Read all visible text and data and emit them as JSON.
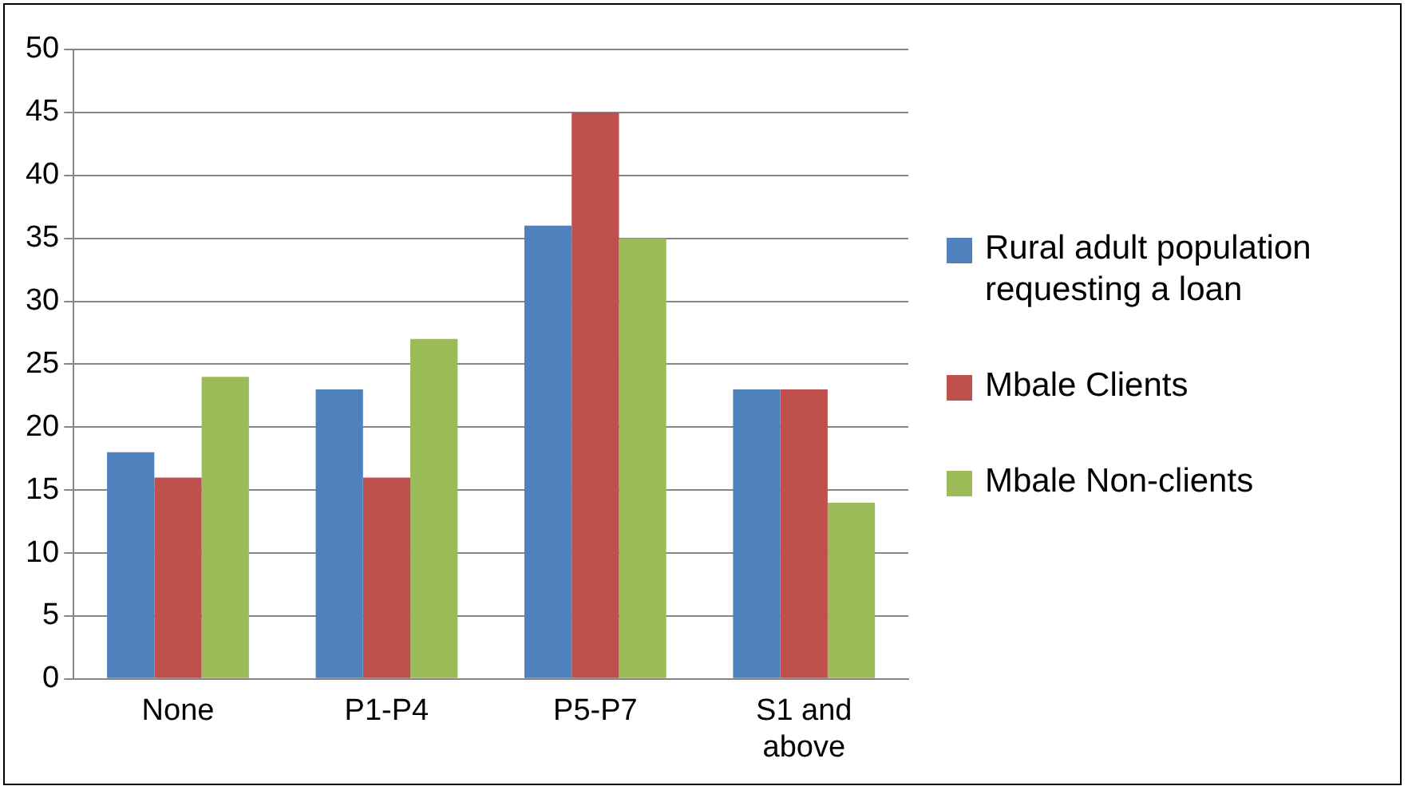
{
  "chart_data": {
    "type": "bar",
    "categories": [
      "None",
      "P1-P4",
      "P5-P7",
      "S1 and above"
    ],
    "series": [
      {
        "name": "Rural adult population requesting a loan",
        "color": "#4f81bd",
        "values": [
          18,
          23,
          36,
          23
        ]
      },
      {
        "name": "Mbale Clients",
        "color": "#c0504d",
        "values": [
          16,
          16,
          45,
          23
        ]
      },
      {
        "name": "Mbale Non-clients",
        "color": "#9bbb59",
        "values": [
          24,
          27,
          35,
          14
        ]
      }
    ],
    "ylim": [
      0,
      50
    ],
    "yticks": [
      0,
      5,
      10,
      15,
      20,
      25,
      30,
      35,
      40,
      45,
      50
    ],
    "grid": "y",
    "legend": "right"
  }
}
